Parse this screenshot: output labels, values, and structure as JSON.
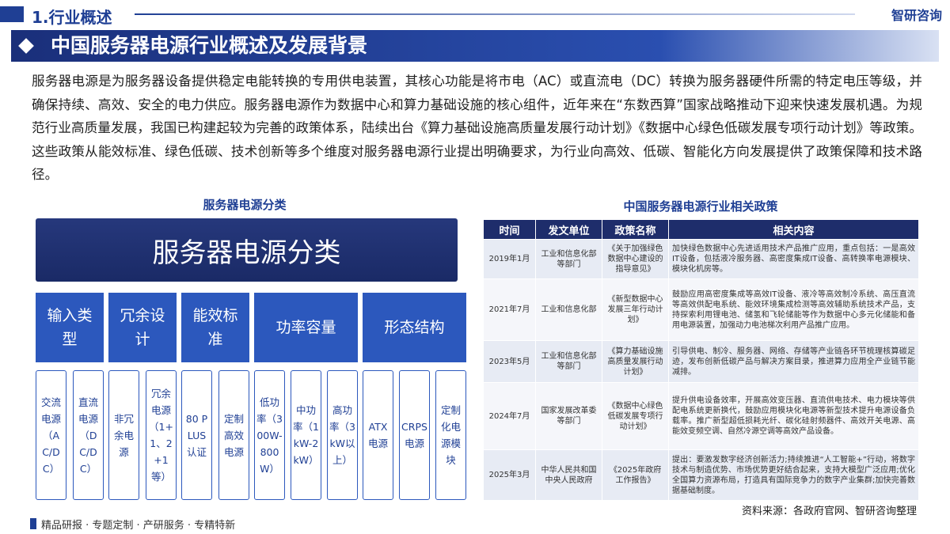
{
  "header": {
    "section": "1.行业概述",
    "brand": "智研咨询"
  },
  "title": "中国服务器电源行业概述及发展背景",
  "intro": "服务器电源是为服务器设备提供稳定电能转换的专用供电装置，其核心功能是将市电（AC）或直流电（DC）转换为服务器硬件所需的特定电压等级，并确保持续、高效、安全的电力供应。服务器电源作为数据中心和算力基础设施的核心组件，近年来在“东数西算”国家战略推动下迎来快速发展机遇。为规范行业高质量发展，我国已构建起较为完善的政策体系，陆续出台《算力基础设施高质量发展行动计划》《数据中心绿色低碳发展专项行动计划》等政策。这些政策从能效标准、绿色低碳、技术创新等多个维度对服务器电源行业提出明确要求，为行业向高效、低碳、智能化方向发展提供了政策保障和技术路径。",
  "classification": {
    "heading": "服务器电源分类",
    "root": "服务器电源分类",
    "categories": [
      {
        "label": "输入类型",
        "items": [
          "交流电源（AC/DC）",
          "直流电源（DC/DC）"
        ]
      },
      {
        "label": "冗余设计",
        "items": [
          "非冗余电源",
          "冗余电源（1+1、2+1等）"
        ]
      },
      {
        "label": "能效标准",
        "items": [
          "80 PLUS认证",
          "定制高效电源"
        ]
      },
      {
        "label": "功率容量",
        "items": [
          "低功率（300W-800W）",
          "中功率（1kW-2kW）",
          "高功率（3kW以上）"
        ]
      },
      {
        "label": "形态结构",
        "items": [
          "ATX电源",
          "CRPS电源",
          "定制化电源模块"
        ]
      }
    ]
  },
  "policy": {
    "heading": "中国服务器电源行业相关政策",
    "columns": [
      "时间",
      "发文单位",
      "政策名称",
      "相关内容"
    ],
    "rows": [
      [
        "2019年1月",
        "工业和信息化部等部门",
        "《关于加强绿色数据中心建设的指导意见》",
        "加快绿色数据中心先进适用技术产品推广应用，重点包括：一是高效IT设备，包括液冷服务器、高密度集成IT设备、高转换率电源模块、模块化机房等。"
      ],
      [
        "2021年7月",
        "工业和信息化部",
        "《新型数据中心发展三年行动计划》",
        "鼓励应用高密度集成等高效IT设备、液冷等高效制冷系统、高压直流等高效供配电系统、能效环境集成检测等高效辅助系统技术产品，支持探索利用锂电池、储氢和飞轮储能等作为数据中心多元化储能和备用电源装置，加强动力电池梯次利用产品推广应用。"
      ],
      [
        "2023年5月",
        "工业和信息化部等部门",
        "《算力基础设施高质量发展行动计划》",
        "引导供电、制冷、服务器、网络、存储等产业链各环节梳理核算碳足迹，发布创新低碳产品与解决方案目录，推进算力应用全产业链节能减排。"
      ],
      [
        "2024年7月",
        "国家发展改革委等部门",
        "《数据中心绿色低碳发展专项行动计划》",
        "提升供电设备效率，开展高效变压器、直流供电技术、电力模块等供配电系统更新换代，鼓励应用模块化电源等新型技术提升电源设备负载率。推广新型超低损耗光纤、碳化硅射频器件、高效开关电源、高能效变频空调、自然冷源空调等高效产品设备。"
      ],
      [
        "2025年3月",
        "中华人民共和国中央人民政府",
        "《2025年政府工作报告》",
        "提出：要激发数字经济创新活力;持续推进“人工智能+”行动，将数字技术与制造优势、市场优势更好结合起来，支持大模型广泛应用;优化全国算力资源布局，打造具有国际竞争力的数字产业集群;加快完善数据基础制度。"
      ]
    ]
  },
  "source": "资料来源：各政府官网、智研咨询整理",
  "footer": "精品研报 · 专题定制 · 产研服务 · 专精特新"
}
